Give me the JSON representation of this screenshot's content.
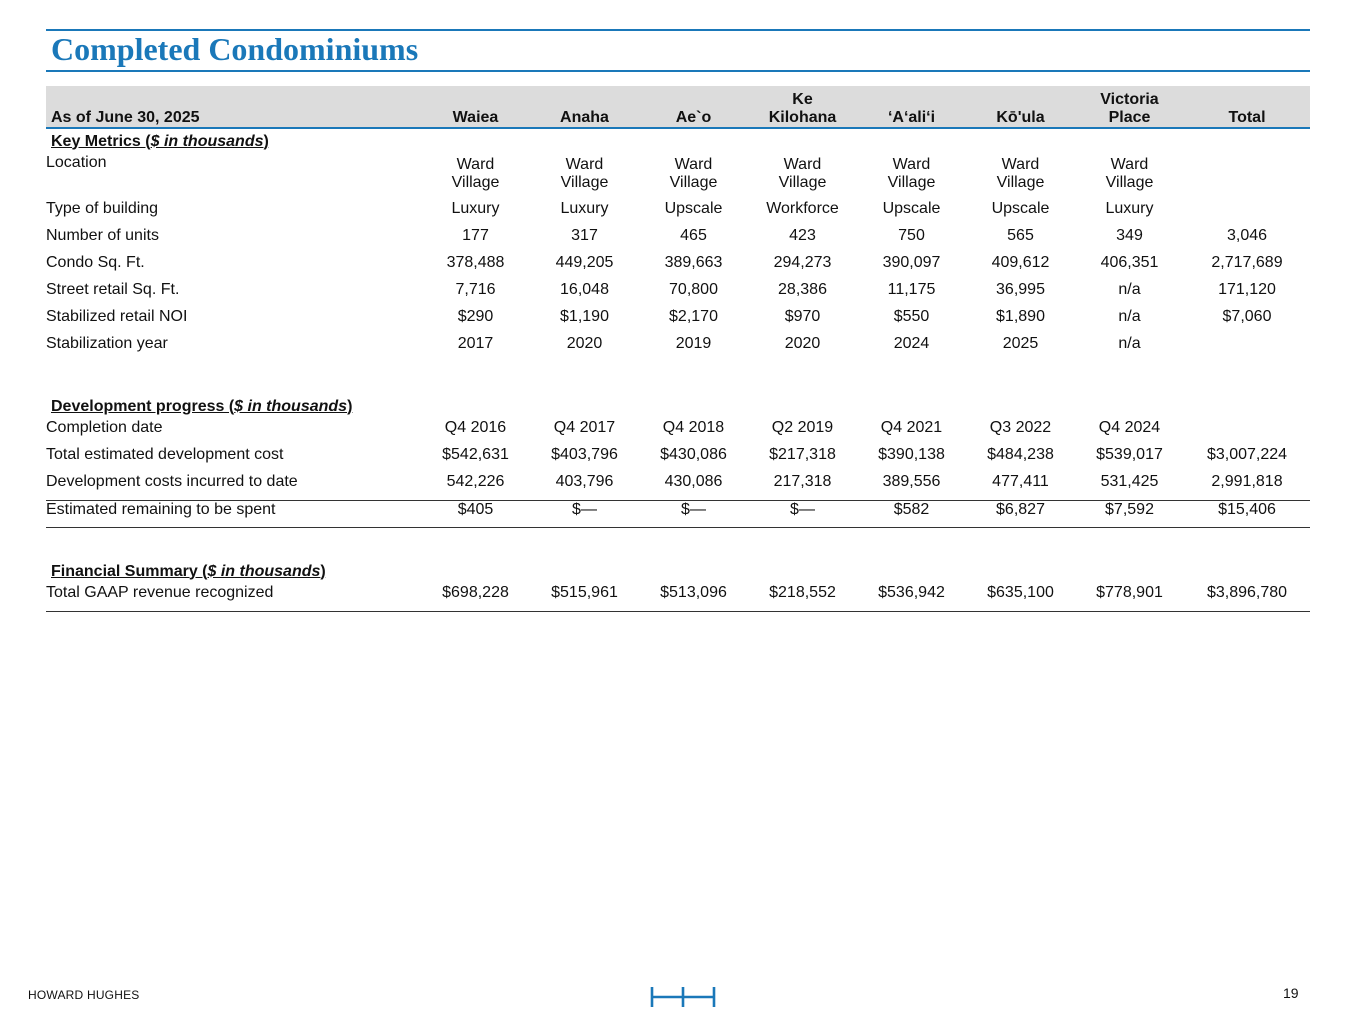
{
  "page": {
    "title": "Completed Condominiums",
    "footer_company": "HOWARD HUGHES",
    "page_number": "19",
    "logo_icon": "hh-logo-icon",
    "accent_color": "#1a78b9"
  },
  "table": {
    "header_label": "As of June 30, 2025",
    "columns": [
      {
        "line1": "",
        "line2": "Waiea"
      },
      {
        "line1": "",
        "line2": "Anaha"
      },
      {
        "line1": "",
        "line2": "Ae`o"
      },
      {
        "line1": "Ke",
        "line2": "Kilohana"
      },
      {
        "line1": "",
        "line2": "‘A‘ali‘i"
      },
      {
        "line1": "",
        "line2": "Kō'ula"
      },
      {
        "line1": "Victoria",
        "line2": "Place"
      },
      {
        "line1": "",
        "line2": "Total"
      }
    ],
    "sections": {
      "key_metrics": {
        "prefix": "Key Metrics (",
        "italic": "$ in thousands",
        "suffix": ")"
      },
      "development": {
        "prefix": "Development progress (",
        "italic": "$ in thousands",
        "suffix": ")"
      },
      "financial": {
        "prefix": "Financial Summary (",
        "italic": "$ in thousands",
        "suffix": ")"
      }
    },
    "rows": {
      "location": {
        "label": "Location",
        "values": [
          [
            "Ward",
            "Village"
          ],
          [
            "Ward",
            "Village"
          ],
          [
            "Ward",
            "Village"
          ],
          [
            "Ward",
            "Village"
          ],
          [
            "Ward",
            "Village"
          ],
          [
            "Ward",
            "Village"
          ],
          [
            "Ward",
            "Village"
          ],
          [
            "",
            ""
          ]
        ]
      },
      "type": {
        "label": "Type of building",
        "values": [
          "Luxury",
          "Luxury",
          "Upscale",
          "Workforce",
          "Upscale",
          "Upscale",
          "Luxury",
          ""
        ]
      },
      "units": {
        "label": "Number of units",
        "values": [
          "177",
          "317",
          "465",
          "423",
          "750",
          "565",
          "349",
          "3,046"
        ]
      },
      "condo_sqft": {
        "label": "Condo Sq. Ft.",
        "values": [
          "378,488",
          "449,205",
          "389,663",
          "294,273",
          "390,097",
          "409,612",
          "406,351",
          "2,717,689"
        ]
      },
      "retail_sqft": {
        "label": "Street retail Sq. Ft.",
        "values": [
          "7,716",
          "16,048",
          "70,800",
          "28,386",
          "11,175",
          "36,995",
          "n/a",
          "171,120"
        ]
      },
      "retail_noi": {
        "label": "Stabilized retail NOI",
        "values": [
          "$290",
          "$1,190",
          "$2,170",
          "$970",
          "$550",
          "$1,890",
          "n/a",
          "$7,060"
        ]
      },
      "stab_year": {
        "label": "Stabilization year",
        "values": [
          "2017",
          "2020",
          "2019",
          "2020",
          "2024",
          "2025",
          "n/a",
          ""
        ]
      },
      "completion": {
        "label": "Completion date",
        "values": [
          "Q4 2016",
          "Q4 2017",
          "Q4 2018",
          "Q2 2019",
          "Q4 2021",
          "Q3 2022",
          "Q4 2024",
          ""
        ]
      },
      "est_cost": {
        "label": "Total estimated development cost",
        "values": [
          "$542,631",
          "$403,796",
          "$430,086",
          "$217,318",
          "$390,138",
          "$484,238",
          "$539,017",
          "$3,007,224"
        ]
      },
      "incurred": {
        "label": "Development costs incurred to date",
        "values": [
          "542,226",
          "403,796",
          "430,086",
          "217,318",
          "389,556",
          "477,411",
          "531,425",
          "2,991,818"
        ]
      },
      "remaining": {
        "label": "Estimated remaining to be spent",
        "values": [
          "$405",
          "$—",
          "$—",
          "$—",
          "$582",
          "$6,827",
          "$7,592",
          "$15,406"
        ]
      },
      "gaap": {
        "label": "Total GAAP revenue recognized",
        "values": [
          "$698,228",
          "$515,961",
          "$513,096",
          "$218,552",
          "$536,942",
          "$635,100",
          "$778,901",
          "$3,896,780"
        ]
      }
    }
  }
}
